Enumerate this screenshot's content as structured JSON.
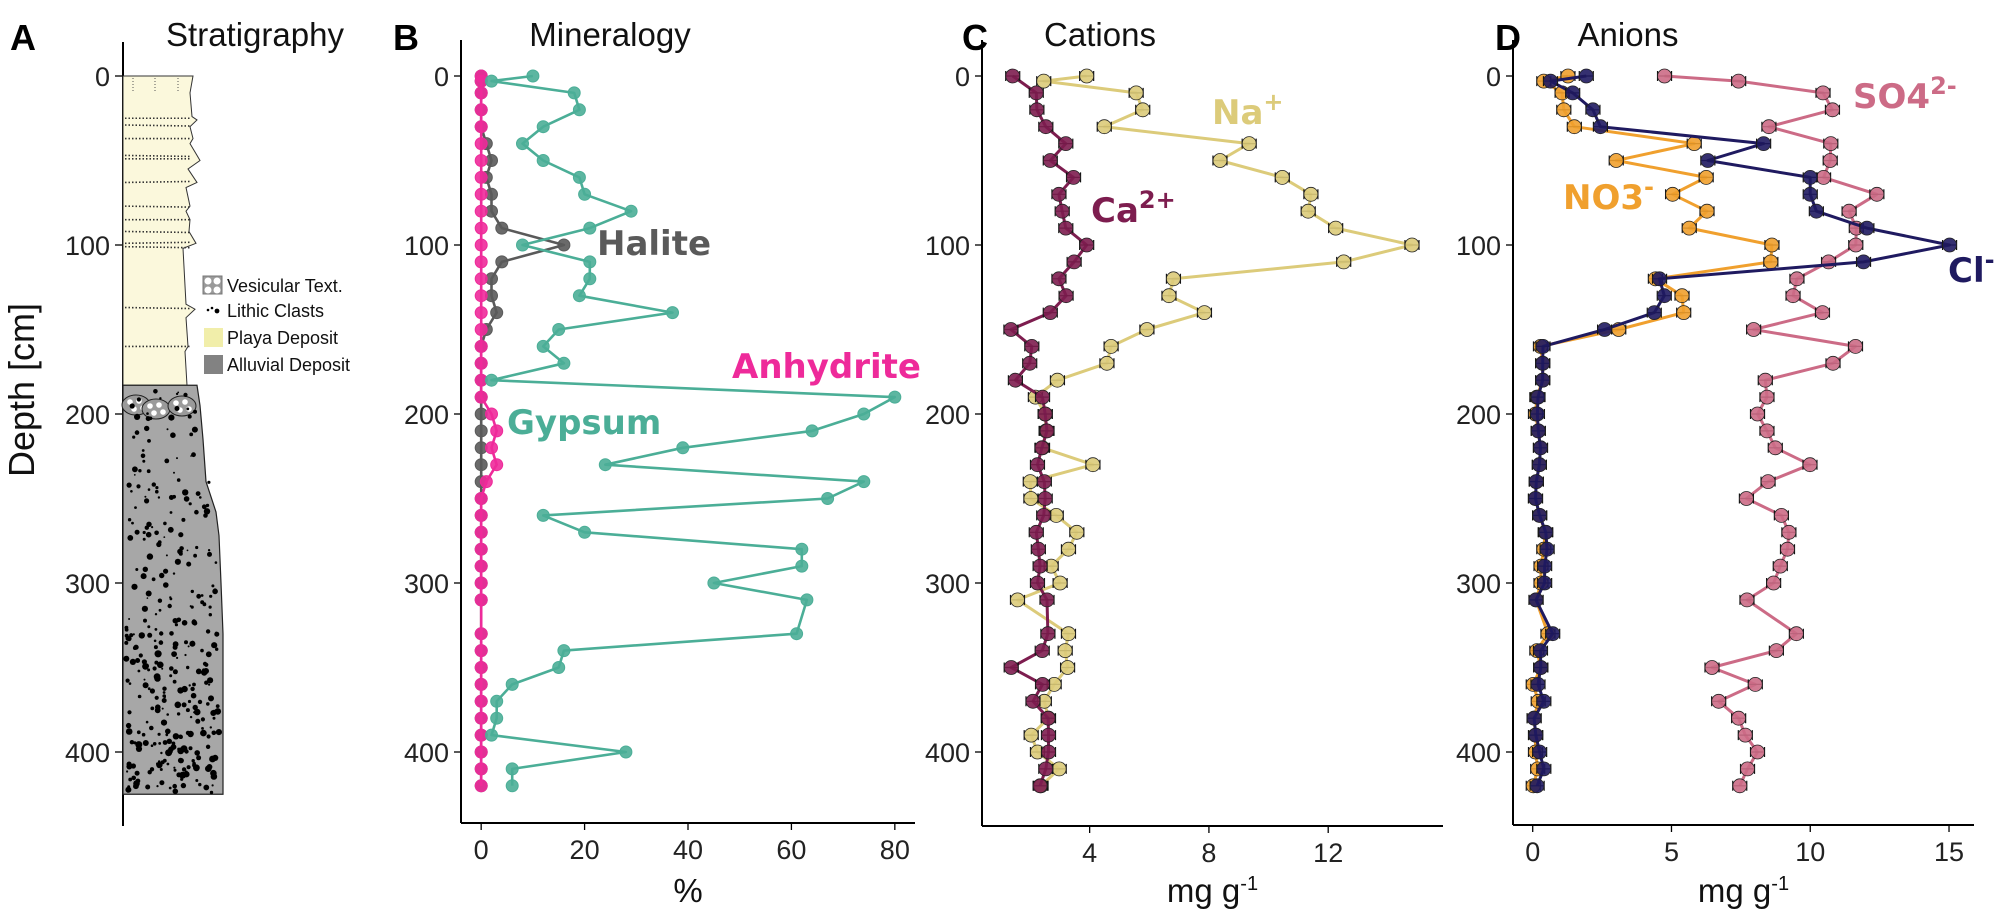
{
  "chart_data": [
    {
      "panel_letter": "A",
      "title": "Stratigraphy",
      "type": "diagram",
      "ylabel": "Depth [cm]",
      "yticks": [
        0,
        100,
        200,
        300,
        400
      ],
      "units": [
        {
          "name": "Playa Deposit",
          "from_cm": 0,
          "to_cm": 183,
          "color": "#fbf8dc"
        },
        {
          "name": "Alluvial Deposit",
          "from_cm": 183,
          "to_cm": 425,
          "color": "#a7a7a7"
        }
      ],
      "legend": [
        {
          "label": "Vesicular Text.",
          "icon": "vesicular-texture-icon"
        },
        {
          "label": "Lithic Clasts",
          "icon": "lithic-clasts-icon"
        },
        {
          "label": "Playa Deposit",
          "icon": "playa-swatch",
          "color": "#f1eeaa"
        },
        {
          "label": "Alluvial Deposit",
          "icon": "alluvial-swatch",
          "color": "#828282"
        }
      ]
    },
    {
      "panel_letter": "B",
      "title": "Mineralogy",
      "type": "line",
      "xlabel": "%",
      "xlabel_sup": "",
      "xlim": [
        -3.9,
        83.9
      ],
      "ylim": [
        443,
        -21
      ],
      "xticks": [
        0,
        20,
        40,
        60,
        80
      ],
      "yticks": [
        0,
        100,
        200,
        300,
        400
      ],
      "error_bars": false,
      "series": [
        {
          "label": "Halite",
          "label_sup": "",
          "color": "#5a5a5a",
          "depth": [
            0,
            3,
            10,
            20,
            30,
            40,
            50,
            60,
            70,
            80,
            90,
            100,
            110,
            120,
            130,
            140,
            150,
            160,
            170,
            180,
            190,
            200,
            210,
            220,
            230,
            240,
            250,
            260,
            270,
            280,
            290,
            300,
            310,
            330,
            340,
            350,
            360,
            370,
            380,
            390,
            400,
            410,
            420
          ],
          "values": [
            0,
            0,
            0,
            0,
            0,
            1,
            2,
            1,
            2,
            2,
            4,
            16,
            4,
            2,
            2,
            3,
            1,
            0,
            0,
            0,
            0,
            0,
            0,
            0,
            0,
            0,
            0,
            0,
            0,
            0,
            0,
            0,
            0,
            0,
            0,
            0,
            0,
            0,
            0,
            0,
            0,
            0,
            0
          ]
        },
        {
          "label": "Anhydrite",
          "label_sup": "",
          "color": "#ee2a9a",
          "depth": [
            0,
            3,
            10,
            20,
            30,
            40,
            50,
            60,
            70,
            80,
            90,
            100,
            110,
            120,
            130,
            140,
            150,
            160,
            170,
            180,
            190,
            200,
            210,
            220,
            230,
            240,
            250,
            260,
            270,
            280,
            290,
            300,
            310,
            330,
            340,
            350,
            360,
            370,
            380,
            390,
            400,
            410,
            420
          ],
          "values": [
            0,
            0,
            0,
            0,
            0,
            0,
            0,
            0,
            0,
            0,
            0,
            0,
            0,
            0,
            0,
            0,
            0,
            0,
            0,
            0,
            0,
            2,
            3,
            2,
            3,
            1,
            0,
            0,
            0,
            0,
            0,
            0,
            0,
            0,
            0,
            0,
            0,
            0,
            0,
            0,
            0,
            0,
            0
          ]
        },
        {
          "label": "Gypsum",
          "label_sup": "",
          "color": "#4bae97",
          "depth": [
            0,
            3,
            10,
            20,
            30,
            40,
            50,
            60,
            70,
            80,
            90,
            100,
            110,
            120,
            130,
            140,
            150,
            160,
            170,
            180,
            190,
            200,
            210,
            220,
            230,
            240,
            250,
            260,
            270,
            280,
            290,
            300,
            310,
            330,
            340,
            350,
            360,
            370,
            380,
            390,
            400,
            410,
            420
          ],
          "values": [
            10,
            2,
            18,
            19,
            12,
            8,
            12,
            19,
            20,
            29,
            21,
            8,
            21,
            21,
            19,
            37,
            15,
            12,
            16,
            2,
            80,
            74,
            64,
            39,
            24,
            74,
            67,
            12,
            20,
            62,
            62,
            45,
            63,
            61,
            16,
            15,
            6,
            3,
            3,
            2,
            28,
            6,
            6
          ]
        }
      ]
    },
    {
      "panel_letter": "C",
      "title": "Cations",
      "type": "line",
      "xlabel": "mg g",
      "xlabel_sup": "-1",
      "xlim": [
        0.39,
        15.85
      ],
      "ylim": [
        443,
        -21
      ],
      "xticks": [
        4,
        8,
        12
      ],
      "yticks": [
        0,
        100,
        200,
        300,
        400
      ],
      "error_bars": true,
      "series": [
        {
          "label": "Na",
          "label_sup": "+",
          "color": "#dccb7a",
          "depth": [
            0,
            3,
            10,
            20,
            30,
            40,
            50,
            60,
            70,
            80,
            90,
            100,
            110,
            120,
            130,
            140,
            150,
            160,
            170,
            180,
            190,
            200,
            210,
            220,
            230,
            240,
            250,
            260,
            270,
            280,
            290,
            300,
            310,
            330,
            340,
            350,
            360,
            370,
            380,
            390,
            400,
            410,
            420
          ],
          "values": [
            3.9,
            2.46,
            5.56,
            5.78,
            4.49,
            9.35,
            8.37,
            10.46,
            11.42,
            11.33,
            12.25,
            14.81,
            12.52,
            6.81,
            6.66,
            7.85,
            5.92,
            4.72,
            4.58,
            2.92,
            2.18,
            2.51,
            2.54,
            2.42,
            4.11,
            2.01,
            2.03,
            2.88,
            3.57,
            3.29,
            2.71,
            3.01,
            1.58,
            3.29,
            3.18,
            3.26,
            2.81,
            2.48,
            2.62,
            2.04,
            2.25,
            2.98,
            2.37
          ]
        },
        {
          "label": "Ca",
          "label_sup": "2+",
          "color": "#7d1d4f",
          "depth": [
            0,
            10,
            20,
            30,
            40,
            50,
            60,
            70,
            80,
            90,
            100,
            110,
            120,
            130,
            140,
            150,
            160,
            170,
            180,
            190,
            200,
            210,
            220,
            230,
            240,
            250,
            260,
            270,
            280,
            290,
            300,
            310,
            330,
            340,
            350,
            360,
            370,
            380,
            390,
            400,
            410,
            420
          ],
          "values": [
            1.42,
            2.21,
            2.23,
            2.53,
            3.2,
            2.68,
            3.46,
            2.97,
            3.08,
            3.2,
            3.9,
            3.48,
            2.97,
            3.21,
            2.68,
            1.36,
            2.06,
            1.99,
            1.51,
            2.42,
            2.51,
            2.57,
            2.4,
            2.25,
            2.48,
            2.51,
            2.46,
            2.21,
            2.28,
            2.34,
            2.25,
            2.57,
            2.6,
            2.41,
            1.37,
            2.42,
            2.1,
            2.61,
            2.62,
            2.62,
            2.53,
            2.34
          ]
        }
      ]
    },
    {
      "panel_letter": "D",
      "title": "Anions",
      "type": "line",
      "xlabel": "mg g",
      "xlabel_sup": "-1",
      "xlim": [
        -0.71,
        15.9
      ],
      "ylim": [
        443,
        -21
      ],
      "xticks": [
        0,
        5,
        10,
        15
      ],
      "yticks": [
        0,
        100,
        200,
        300,
        400
      ],
      "error_bars": true,
      "series": [
        {
          "label": "SO4",
          "label_sup": "2-",
          "color": "#cc6b86",
          "depth": [
            0,
            3,
            10,
            20,
            30,
            40,
            50,
            60,
            70,
            80,
            90,
            100,
            110,
            120,
            130,
            140,
            150,
            160,
            170,
            180,
            190,
            200,
            210,
            220,
            230,
            240,
            250,
            260,
            270,
            280,
            290,
            300,
            310,
            330,
            340,
            350,
            360,
            370,
            380,
            390,
            400,
            410,
            420
          ],
          "values": [
            4.75,
            7.42,
            10.46,
            10.8,
            8.51,
            10.74,
            10.72,
            10.48,
            12.4,
            11.4,
            11.66,
            11.64,
            10.66,
            9.52,
            9.38,
            10.44,
            7.96,
            11.63,
            10.82,
            8.38,
            8.44,
            8.1,
            8.44,
            8.74,
            9.99,
            8.48,
            7.7,
            8.96,
            9.23,
            9.18,
            8.92,
            8.68,
            7.72,
            9.5,
            8.78,
            6.46,
            8.02,
            6.7,
            7.42,
            7.66,
            8.1,
            7.74,
            7.46
          ]
        },
        {
          "label": "NO3",
          "label_sup": "-",
          "color": "#f0a02e",
          "depth": [
            0,
            3,
            10,
            20,
            30,
            40,
            50,
            60,
            70,
            80,
            90,
            100,
            110,
            120,
            130,
            140,
            150,
            160,
            170,
            180,
            190,
            200,
            210,
            220,
            230,
            240,
            250,
            260,
            270,
            280,
            290,
            300,
            310,
            330,
            340,
            350,
            360,
            370,
            380,
            390,
            400,
            410,
            420
          ],
          "values": [
            1.27,
            0.4,
            1.06,
            1.12,
            1.5,
            5.82,
            3.01,
            6.25,
            5.04,
            6.28,
            5.64,
            8.62,
            8.58,
            4.42,
            5.38,
            5.44,
            3.1,
            0.28,
            0.36,
            0.36,
            0.15,
            0.1,
            0.2,
            0.28,
            0.24,
            0.13,
            0.1,
            0.25,
            0.45,
            0.4,
            0.3,
            0.3,
            0.12,
            0.55,
            0.15,
            0.29,
            0.02,
            0.2,
            0.05,
            0.1,
            0.1,
            0.18,
            0.02
          ]
        },
        {
          "label": "Cl",
          "label_sup": "-",
          "color": "#1f1a60",
          "depth": [
            0,
            3,
            10,
            20,
            30,
            40,
            50,
            60,
            70,
            80,
            90,
            100,
            110,
            120,
            130,
            140,
            150,
            160,
            170,
            180,
            190,
            200,
            210,
            220,
            230,
            240,
            250,
            260,
            270,
            280,
            290,
            300,
            310,
            330,
            340,
            350,
            360,
            370,
            380,
            390,
            400,
            410,
            420
          ],
          "values": [
            1.93,
            0.64,
            1.44,
            2.17,
            2.44,
            8.32,
            6.31,
            10.0,
            10.0,
            10.22,
            12.04,
            15.02,
            11.92,
            4.57,
            4.74,
            4.38,
            2.59,
            0.37,
            0.36,
            0.36,
            0.19,
            0.17,
            0.2,
            0.28,
            0.24,
            0.13,
            0.1,
            0.25,
            0.47,
            0.52,
            0.43,
            0.43,
            0.12,
            0.72,
            0.28,
            0.29,
            0.19,
            0.4,
            0.05,
            0.11,
            0.25,
            0.4,
            0.16
          ]
        }
      ]
    }
  ]
}
